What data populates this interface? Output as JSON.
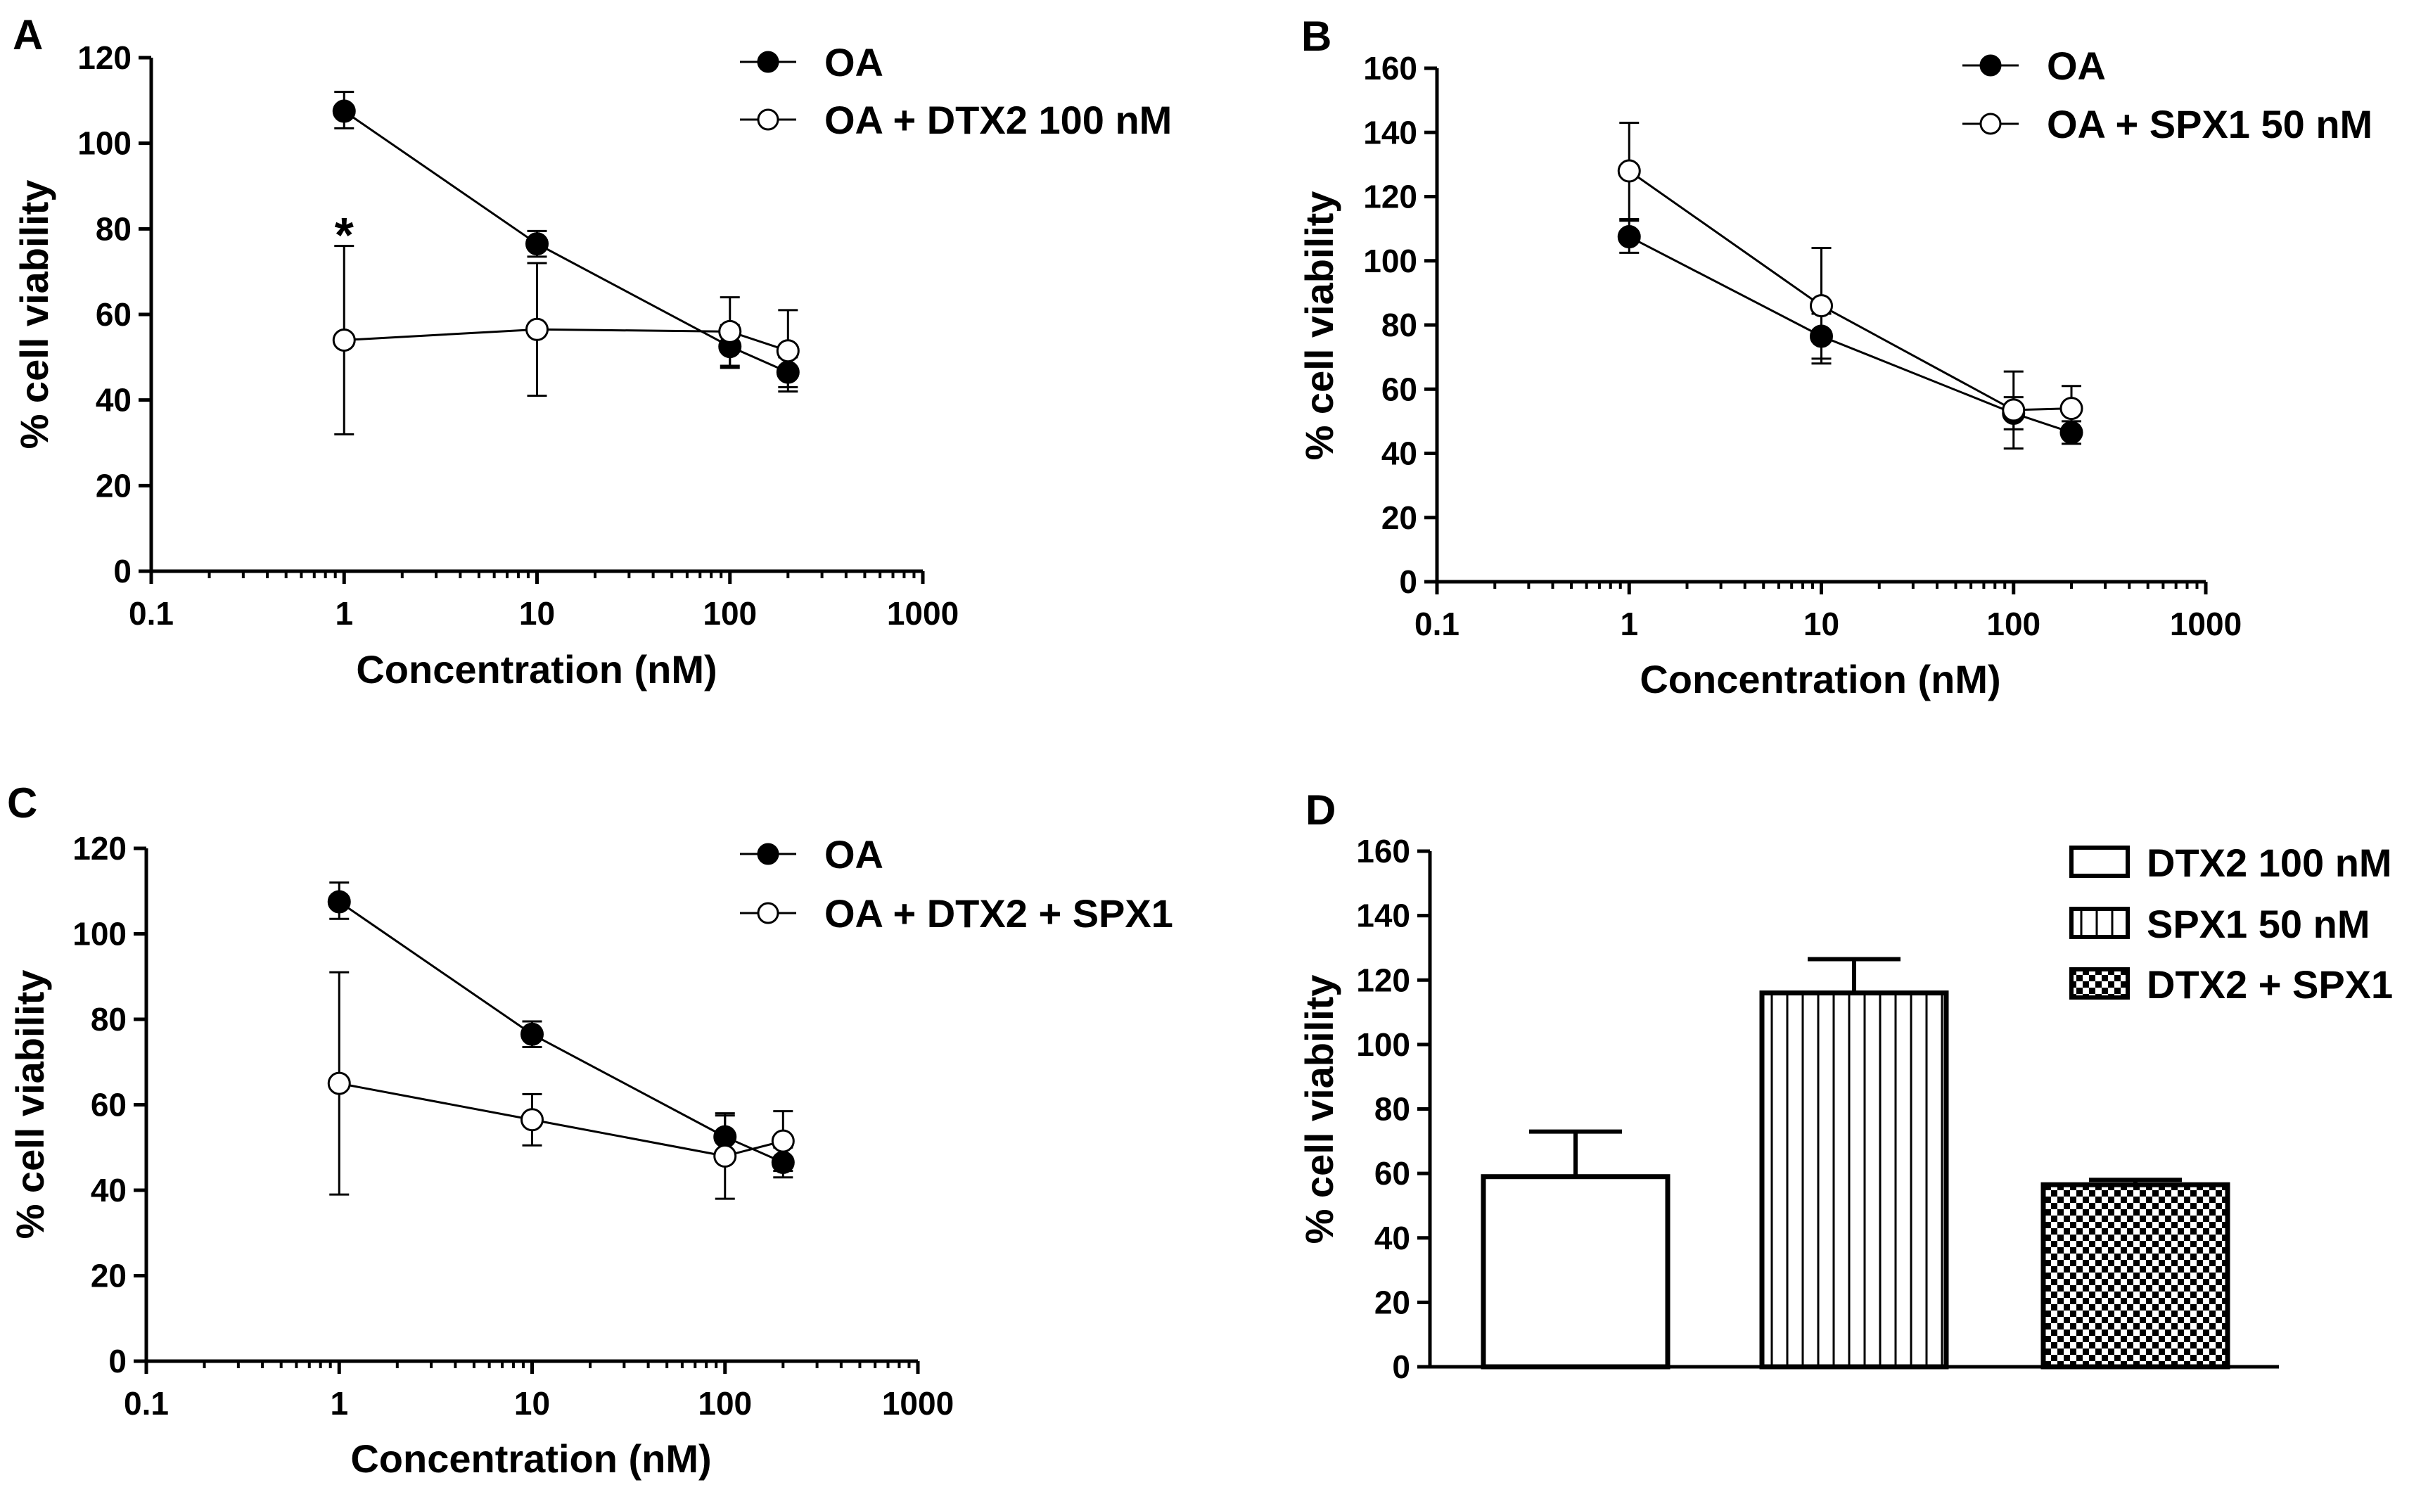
{
  "chart_data": [
    {
      "panel": "A",
      "type": "line",
      "xscale": "log",
      "xlabel": "Concentration (nM)",
      "ylabel": "% cell viability",
      "xlim": [
        0.1,
        1000
      ],
      "ylim": [
        0,
        120
      ],
      "xticks": [
        0.1,
        1,
        10,
        100,
        1000
      ],
      "xticklabels": [
        "0.1",
        "1",
        "10",
        "100",
        "1000"
      ],
      "yticks": [
        0,
        20,
        40,
        60,
        80,
        100,
        120
      ],
      "yticklabels": [
        "0",
        "20",
        "40",
        "60",
        "80",
        "100",
        "120"
      ],
      "x": [
        1,
        10,
        100,
        200
      ],
      "series": [
        {
          "name": "OA",
          "marker": "filled",
          "values": [
            107.5,
            76.5,
            52.5,
            46.5
          ],
          "err_up": [
            4.5,
            3,
            5,
            3.5
          ],
          "err_down": [
            4,
            3,
            5,
            3.5
          ]
        },
        {
          "name": "OA + DTX2 100 nM",
          "marker": "open",
          "values": [
            54,
            56.5,
            56,
            51.5
          ],
          "err_up": [
            22,
            15.5,
            8,
            9.5
          ],
          "err_down": [
            22,
            15.5,
            8,
            9.5
          ]
        }
      ],
      "annotations": [
        {
          "text": "*",
          "x": 1,
          "y": 82
        }
      ]
    },
    {
      "panel": "B",
      "type": "line",
      "xscale": "log",
      "xlabel": "Concentration (nM)",
      "ylabel": "% cell viability",
      "xlim": [
        0.1,
        1000
      ],
      "ylim": [
        0,
        160
      ],
      "xticks": [
        0.1,
        1,
        10,
        100,
        1000
      ],
      "xticklabels": [
        "0.1",
        "1",
        "10",
        "100",
        "1000"
      ],
      "yticks": [
        0,
        20,
        40,
        60,
        80,
        100,
        120,
        140,
        160
      ],
      "yticklabels": [
        "0",
        "20",
        "40",
        "60",
        "80",
        "100",
        "120",
        "140",
        "160"
      ],
      "x": [
        1,
        10,
        100,
        200
      ],
      "series": [
        {
          "name": "OA",
          "marker": "filled",
          "values": [
            107.5,
            76.5,
            52.5,
            46.5
          ],
          "err_up": [
            5,
            7,
            5,
            3.5
          ],
          "err_down": [
            5,
            7,
            5,
            3.5
          ]
        },
        {
          "name": "OA + SPX1 50 nM",
          "marker": "open",
          "values": [
            128,
            86,
            53.5,
            54
          ],
          "err_up": [
            15,
            18,
            12,
            7
          ],
          "err_down": [
            15,
            18,
            12,
            7
          ]
        }
      ]
    },
    {
      "panel": "C",
      "type": "line",
      "xscale": "log",
      "xlabel": "Concentration (nM)",
      "ylabel": "% cell viability",
      "xlim": [
        0.1,
        1000
      ],
      "ylim": [
        0,
        120
      ],
      "xticks": [
        0.1,
        1,
        10,
        100,
        1000
      ],
      "xticklabels": [
        "0.1",
        "1",
        "10",
        "100",
        "1000"
      ],
      "yticks": [
        0,
        20,
        40,
        60,
        80,
        100,
        120
      ],
      "yticklabels": [
        "0",
        "20",
        "40",
        "60",
        "80",
        "100",
        "120"
      ],
      "x": [
        1,
        10,
        100,
        200
      ],
      "series": [
        {
          "name": "OA",
          "marker": "filled",
          "values": [
            107.5,
            76.5,
            52.5,
            46.5
          ],
          "err_up": [
            4.5,
            3,
            5,
            3.5
          ],
          "err_down": [
            4,
            3,
            5,
            3.5
          ]
        },
        {
          "name": "OA + DTX2 + SPX1",
          "marker": "open",
          "values": [
            65,
            56.5,
            48,
            51.5
          ],
          "err_up": [
            26,
            6,
            10,
            7
          ],
          "err_down": [
            26,
            6,
            10,
            7
          ]
        }
      ]
    },
    {
      "panel": "D",
      "type": "bar",
      "ylabel": "% cell viability",
      "ylim": [
        0,
        160
      ],
      "yticks": [
        0,
        20,
        40,
        60,
        80,
        100,
        120,
        140,
        160
      ],
      "yticklabels": [
        "0",
        "20",
        "40",
        "60",
        "80",
        "100",
        "120",
        "140",
        "160"
      ],
      "categories": [
        "DTX2 100 nM",
        "SPX1 50 nM",
        "DTX2 + SPX1"
      ],
      "values": [
        59,
        116,
        56.5
      ],
      "errors": [
        14,
        10.5,
        1.5
      ],
      "patterns": [
        "none",
        "vertical-lines",
        "checker"
      ]
    }
  ]
}
